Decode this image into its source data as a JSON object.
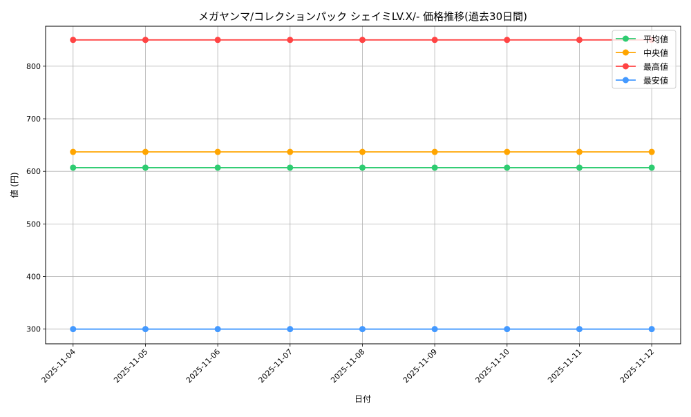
{
  "chart_data": {
    "type": "line",
    "title": "メガヤンマ/コレクションパック シェイミLV.X/- 価格推移(過去30日間)",
    "xlabel": "日付",
    "ylabel": "値 (円)",
    "categories": [
      "2025-11-04",
      "2025-11-05",
      "2025-11-06",
      "2025-11-07",
      "2025-11-08",
      "2025-11-09",
      "2025-11-10",
      "2025-11-11",
      "2025-11-12"
    ],
    "ylim": [
      272,
      876
    ],
    "yticks": [
      300,
      400,
      500,
      600,
      700,
      800
    ],
    "grid": true,
    "legend_position": "top-right",
    "series": [
      {
        "name": "平均値",
        "color": "#2ecc71",
        "values": [
          607,
          607,
          607,
          607,
          607,
          607,
          607,
          607,
          607
        ]
      },
      {
        "name": "中央値",
        "color": "#ffa500",
        "values": [
          637,
          637,
          637,
          637,
          637,
          637,
          637,
          637,
          637
        ]
      },
      {
        "name": "最高値",
        "color": "#ff4444",
        "values": [
          850,
          850,
          850,
          850,
          850,
          850,
          850,
          850,
          850
        ]
      },
      {
        "name": "最安値",
        "color": "#4499ff",
        "values": [
          300,
          300,
          300,
          300,
          300,
          300,
          300,
          300,
          300
        ]
      }
    ]
  }
}
